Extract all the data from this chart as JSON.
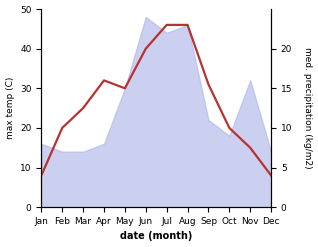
{
  "months": [
    "Jan",
    "Feb",
    "Mar",
    "Apr",
    "May",
    "Jun",
    "Jul",
    "Aug",
    "Sep",
    "Oct",
    "Nov",
    "Dec"
  ],
  "temp_max": [
    8,
    20,
    25,
    32,
    30,
    40,
    46,
    46,
    31,
    20,
    15,
    8
  ],
  "precipitation": [
    8,
    7,
    7,
    8,
    15,
    24,
    22,
    23,
    11,
    9,
    16,
    7
  ],
  "precip_scale": 2.0,
  "temp_ylim": [
    0,
    50
  ],
  "precip_ylim": [
    0,
    25
  ],
  "temp_ticks": [
    0,
    10,
    20,
    30,
    40,
    50
  ],
  "precip_ticks": [
    0,
    5,
    10,
    15,
    20
  ],
  "temp_color": "#b83232",
  "precip_fill_color": "#b0b8e8",
  "precip_fill_alpha": 0.65,
  "ylabel_left": "max temp (C)",
  "ylabel_right": "med. precipitation (kg/m2)",
  "xlabel": "date (month)",
  "temp_linewidth": 1.6,
  "label_fontsize": 6.5,
  "tick_fontsize": 6.5,
  "xlabel_fontsize": 7.0,
  "bg_color": "#ffffff"
}
